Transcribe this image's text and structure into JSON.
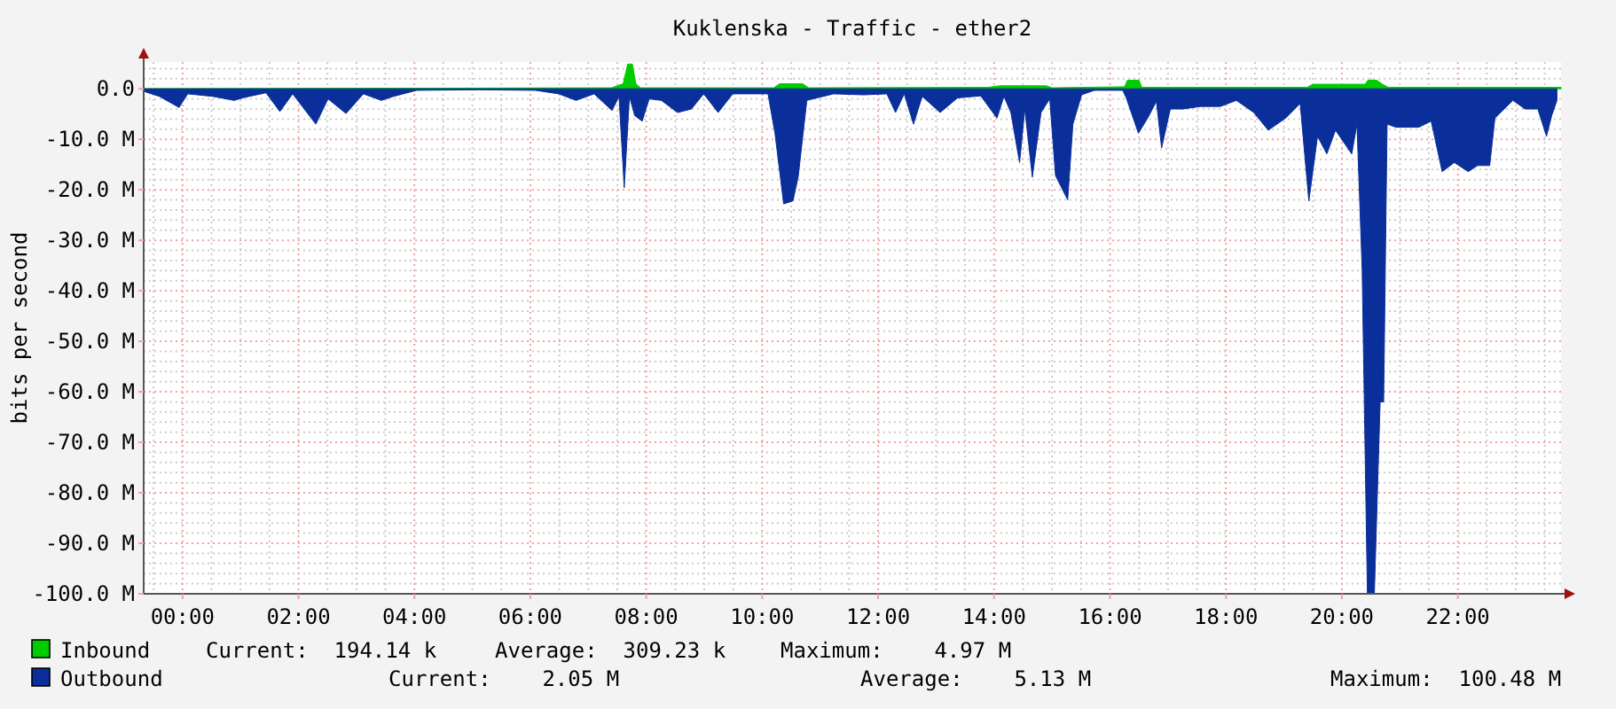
{
  "chart_data": {
    "type": "area",
    "title": "Kuklenska - Traffic - ether2",
    "ylabel": "bits per second",
    "xlim": [
      -0.67,
      23.78
    ],
    "ylim": [
      -100,
      5.3
    ],
    "xticks": [
      {
        "value": 0,
        "label": "00:00"
      },
      {
        "value": 2,
        "label": "02:00"
      },
      {
        "value": 4,
        "label": "04:00"
      },
      {
        "value": 6,
        "label": "06:00"
      },
      {
        "value": 8,
        "label": "08:00"
      },
      {
        "value": 10,
        "label": "10:00"
      },
      {
        "value": 12,
        "label": "12:00"
      },
      {
        "value": 14,
        "label": "14:00"
      },
      {
        "value": 16,
        "label": "16:00"
      },
      {
        "value": 18,
        "label": "18:00"
      },
      {
        "value": 20,
        "label": "20:00"
      },
      {
        "value": 22,
        "label": "22:00"
      }
    ],
    "yticks": [
      {
        "value": 0,
        "label": "0.0"
      },
      {
        "value": -10,
        "label": "-10.0 M"
      },
      {
        "value": -20,
        "label": "-20.0 M"
      },
      {
        "value": -30,
        "label": "-30.0 M"
      },
      {
        "value": -40,
        "label": "-40.0 M"
      },
      {
        "value": -50,
        "label": "-50.0 M"
      },
      {
        "value": -60,
        "label": "-60.0 M"
      },
      {
        "value": -70,
        "label": "-70.0 M"
      },
      {
        "value": -80,
        "label": "-80.0 M"
      },
      {
        "value": -90,
        "label": "-90.0 M"
      },
      {
        "value": -100,
        "label": "-100.0 M"
      }
    ],
    "grid": true,
    "legend": "bottom",
    "series": [
      {
        "name": "Inbound",
        "color": "#00cc00",
        "x": [
          -0.67,
          7.4,
          7.6,
          7.68,
          7.76,
          7.82,
          7.9,
          10.2,
          10.3,
          10.7,
          10.8,
          13.9,
          14.1,
          14.9,
          15.0,
          16.25,
          16.3,
          16.5,
          16.55,
          19.4,
          19.5,
          20.4,
          20.45,
          20.6,
          20.7,
          20.8,
          23.78
        ],
        "values": [
          0,
          0.2,
          1,
          4.9,
          4.9,
          1,
          0.2,
          0.2,
          1,
          1,
          0.2,
          0.3,
          0.6,
          0.6,
          0.2,
          0.4,
          1.7,
          1.7,
          0.3,
          0.3,
          0.9,
          0.9,
          1.7,
          1.7,
          0.9,
          0.3,
          0.3
        ]
      },
      {
        "name": "Outbound",
        "color": "#0a2f9a",
        "x": [
          -0.67,
          -0.4,
          -0.06,
          0.09,
          0.52,
          0.89,
          1.07,
          1.44,
          1.68,
          1.9,
          2.3,
          2.51,
          2.82,
          3.12,
          3.43,
          3.64,
          4.04,
          5.11,
          6.09,
          6.49,
          6.79,
          7.1,
          7.41,
          7.53,
          7.62,
          7.71,
          7.8,
          7.93,
          8.05,
          8.26,
          8.54,
          8.78,
          8.99,
          9.24,
          9.49,
          10.1,
          10.22,
          10.37,
          10.53,
          10.62,
          10.77,
          11.23,
          11.75,
          12.15,
          12.3,
          12.45,
          12.61,
          12.76,
          13.07,
          13.37,
          13.77,
          14.05,
          14.17,
          14.29,
          14.44,
          14.53,
          14.66,
          14.81,
          14.96,
          15.06,
          15.27,
          15.36,
          15.51,
          15.73,
          16.22,
          16.28,
          16.49,
          16.65,
          16.8,
          16.89,
          17.04,
          17.26,
          17.56,
          17.9,
          18.18,
          18.48,
          18.73,
          19.03,
          19.28,
          19.43,
          19.58,
          19.74,
          19.89,
          20.17,
          20.26,
          20.35,
          20.44,
          20.56,
          20.66,
          20.72,
          20.78,
          20.93,
          21.33,
          21.54,
          21.73,
          21.94,
          22.18,
          22.34,
          22.55,
          22.64,
          22.95,
          23.16,
          23.38,
          23.53,
          23.62,
          23.71
        ],
        "values": [
          -0.5,
          -1.5,
          -3.7,
          -1,
          -1.5,
          -2.3,
          -1.7,
          -0.8,
          -4.5,
          -1,
          -7,
          -2,
          -4.9,
          -1,
          -2.3,
          -1.5,
          -0.3,
          -0.2,
          -0.3,
          -1,
          -2.3,
          -1,
          -4.3,
          -1.5,
          -19.6,
          -1.5,
          -5.3,
          -6.4,
          -2,
          -2.3,
          -4.7,
          -4,
          -1,
          -4.7,
          -1,
          -1,
          -8.8,
          -22.8,
          -22.2,
          -17.5,
          -2.3,
          -1,
          -1.2,
          -1,
          -4.7,
          -1,
          -7,
          -1.5,
          -4.7,
          -1.8,
          -1.4,
          -5.8,
          -1.5,
          -4.7,
          -14.6,
          -4,
          -17.5,
          -4.7,
          -2,
          -17.2,
          -22,
          -7,
          -1.2,
          -0.3,
          -0.3,
          -1.8,
          -8.8,
          -5.8,
          -2.5,
          -11.7,
          -4,
          -4,
          -3.5,
          -3.5,
          -2.3,
          -4.7,
          -8.2,
          -5.8,
          -2.9,
          -22.2,
          -9.4,
          -12.9,
          -8.2,
          -12.9,
          -7,
          -36,
          -100,
          -100,
          -62,
          -62,
          -7,
          -7.6,
          -7.6,
          -6.4,
          -16.4,
          -14.6,
          -16.4,
          -15.2,
          -15.2,
          -5.8,
          -2.3,
          -4,
          -4,
          -9.4,
          -5.3,
          -2.3
        ]
      }
    ],
    "annotations": [
      "Current:  194.14 k",
      "Average:  309.23 k",
      "Maximum:    4.97 M",
      "Current:    2.05 M",
      "Average:    5.13 M",
      "Maximum:  100.48 M"
    ]
  }
}
